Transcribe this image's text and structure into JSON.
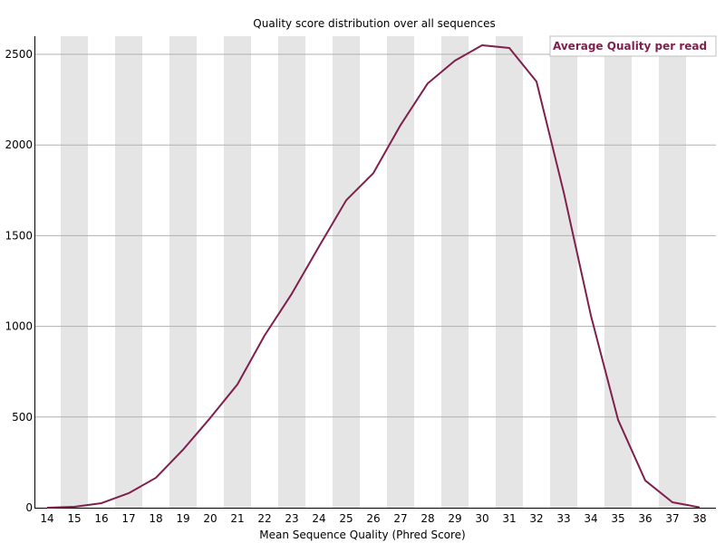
{
  "chart_data": {
    "type": "line",
    "title": "Quality score distribution over all sequences",
    "xlabel": "Mean Sequence Quality (Phred Score)",
    "ylabel": "",
    "x": [
      14,
      15,
      16,
      17,
      18,
      19,
      20,
      21,
      22,
      23,
      24,
      25,
      26,
      27,
      28,
      29,
      30,
      31,
      32,
      33,
      34,
      35,
      36,
      37,
      38
    ],
    "series": [
      {
        "name": "Average Quality per read",
        "color": "#7f1f4d",
        "values": [
          0,
          5,
          25,
          80,
          165,
          320,
          495,
          680,
          950,
          1180,
          1440,
          1695,
          1845,
          2110,
          2340,
          2465,
          2550,
          2535,
          2350,
          1740,
          1060,
          485,
          150,
          30,
          2
        ]
      }
    ],
    "xlim": [
      14,
      38
    ],
    "ylim": [
      0,
      2550
    ],
    "yticks": [
      0,
      500,
      1000,
      1500,
      2000,
      2500
    ],
    "xticks": [
      "14",
      "15",
      "16",
      "17",
      "18",
      "19",
      "20",
      "21",
      "22",
      "23",
      "24",
      "25",
      "26",
      "27",
      "28",
      "29",
      "30",
      "31",
      "32",
      "33",
      "34",
      "35",
      "36",
      "37",
      "38"
    ],
    "grid": true,
    "legend_position": "top-right",
    "colors": {
      "stripe": "#e5e5e5",
      "gridline": "#b0b0b0",
      "axis": "#000000",
      "legend_border": "#c0c0c0"
    }
  }
}
